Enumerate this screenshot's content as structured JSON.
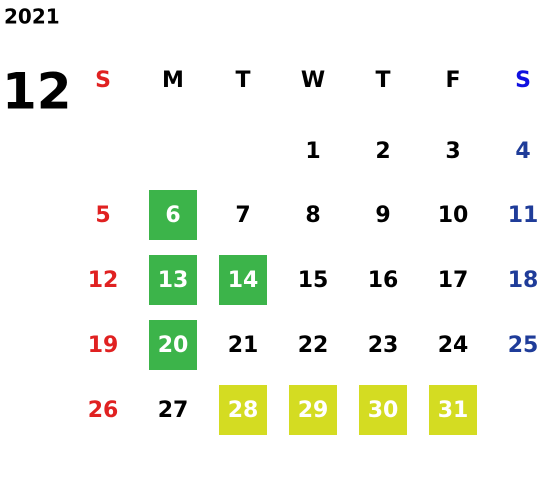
{
  "year": "2021",
  "month": "12",
  "weekdays": [
    "S",
    "M",
    "T",
    "W",
    "T",
    "F",
    "S"
  ],
  "weekday_colors": [
    "#e02121",
    "#000000",
    "#000000",
    "#000000",
    "#000000",
    "#000000",
    "#1f3c99"
  ],
  "header_colors": [
    "#e02121",
    "#000000",
    "#000000",
    "#000000",
    "#000000",
    "#000000",
    "#1010e0"
  ],
  "weeks": [
    [
      null,
      null,
      null,
      {
        "day": 1
      },
      {
        "day": 2
      },
      {
        "day": 3
      },
      {
        "day": 4
      }
    ],
    [
      {
        "day": 5
      },
      {
        "day": 6,
        "fill": "#3cb44a"
      },
      {
        "day": 7
      },
      {
        "day": 8
      },
      {
        "day": 9
      },
      {
        "day": 10
      },
      {
        "day": 11
      }
    ],
    [
      {
        "day": 12
      },
      {
        "day": 13,
        "fill": "#3cb44a"
      },
      {
        "day": 14,
        "fill": "#3cb44a"
      },
      {
        "day": 15
      },
      {
        "day": 16
      },
      {
        "day": 17
      },
      {
        "day": 18
      }
    ],
    [
      {
        "day": 19
      },
      {
        "day": 20,
        "fill": "#3cb44a"
      },
      {
        "day": 21
      },
      {
        "day": 22
      },
      {
        "day": 23
      },
      {
        "day": 24
      },
      {
        "day": 25
      }
    ],
    [
      {
        "day": 26
      },
      {
        "day": 27
      },
      {
        "day": 28,
        "fill": "#d4dc22"
      },
      {
        "day": 29,
        "fill": "#d4dc22"
      },
      {
        "day": 30,
        "fill": "#d4dc22"
      },
      {
        "day": 31,
        "fill": "#d4dc22"
      },
      null
    ]
  ]
}
